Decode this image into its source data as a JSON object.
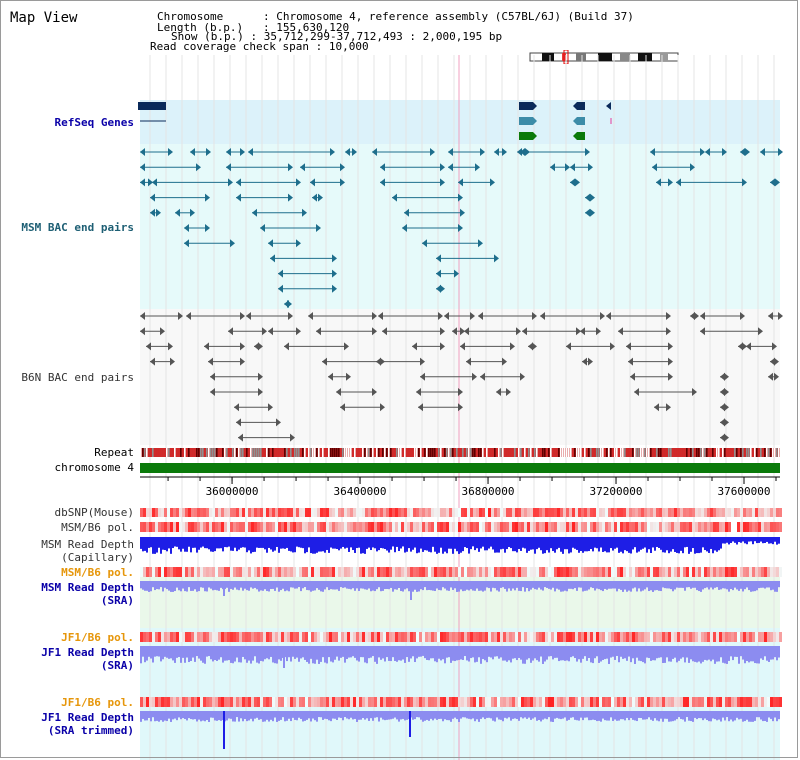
{
  "app_title": "Map View",
  "header": {
    "chromosome_key": "Chromosome",
    "chromosome_value": "Chromosome 4, reference assembly (C57BL/6J) (Build 37)",
    "length_key": "Length (b.p.)",
    "length_value": "155,630,120",
    "show_key": "Show (b.p.)",
    "show_value": "35,712,299-37,712,493 : 2,000,195 bp",
    "coverage_key": "Read coverage check span",
    "coverage_value": "10,000"
  },
  "track_labels": {
    "refseq": "RefSeq Genes",
    "msm_bac": "MSM BAC end pairs",
    "b6n_bac": "B6N BAC end pairs",
    "repeat": "Repeat",
    "chromosome": "chromosome 4",
    "dbsnp": "dbSNP(Mouse)",
    "msm_b6_pol_1": "MSM/B6 pol.",
    "msm_read_depth_cap_1": "MSM Read Depth",
    "msm_read_depth_cap_2": "(Capillary)",
    "msm_b6_pol_2": "MSM/B6 pol.",
    "msm_read_depth_sra_1": "MSM Read Depth",
    "msm_read_depth_sra_2": "(SRA)",
    "jf1_b6_pol_1": "JF1/B6 pol.",
    "jf1_read_depth_sra_1": "JF1 Read Depth",
    "jf1_read_depth_sra_2": "(SRA)",
    "jf1_b6_pol_2": "JF1/B6 pol.",
    "jf1_read_depth_trim_1": "JF1 Read Depth",
    "jf1_read_depth_trim_2": "(SRA trimmed)"
  },
  "axis": {
    "ticks": [
      {
        "label": "36000000",
        "pos": 36000000
      },
      {
        "label": "36400000",
        "pos": 36400000
      },
      {
        "label": "36800000",
        "pos": 36800000
      },
      {
        "label": "37200000",
        "pos": 37200000
      },
      {
        "label": "37600000",
        "pos": 37600000
      }
    ]
  },
  "colors": {
    "refseq_bg": "#dcf2fa",
    "msm_bg": "#e6fafa",
    "b6n_bg": "#f8f8f8",
    "chromosome": "#0a7a0a",
    "gene_navy": "#0a2a5a",
    "gene_teal": "#3c8ca8",
    "gene_green": "#0a7a0a",
    "msm_pair": "#1e6e8c",
    "b6n_pair": "#555555",
    "depth_capillary": "#1e1ee6",
    "depth_sra": "#8c8cf0",
    "pol_red": "#e63c3c"
  }
}
